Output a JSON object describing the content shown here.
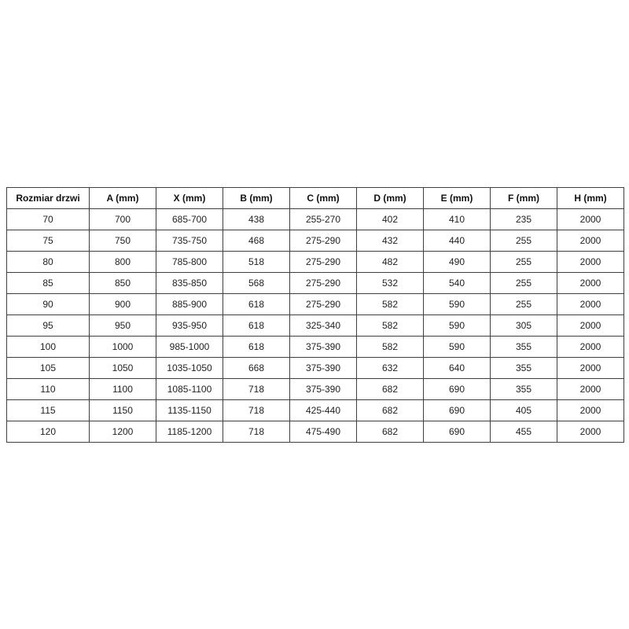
{
  "chart_data": {
    "type": "table",
    "columns": [
      "Rozmiar drzwi",
      "A (mm)",
      "X (mm)",
      "B (mm)",
      "C (mm)",
      "D (mm)",
      "E (mm)",
      "F (mm)",
      "H (mm)"
    ],
    "rows": [
      [
        "70",
        "700",
        "685-700",
        "438",
        "255-270",
        "402",
        "410",
        "235",
        "2000"
      ],
      [
        "75",
        "750",
        "735-750",
        "468",
        "275-290",
        "432",
        "440",
        "255",
        "2000"
      ],
      [
        "80",
        "800",
        "785-800",
        "518",
        "275-290",
        "482",
        "490",
        "255",
        "2000"
      ],
      [
        "85",
        "850",
        "835-850",
        "568",
        "275-290",
        "532",
        "540",
        "255",
        "2000"
      ],
      [
        "90",
        "900",
        "885-900",
        "618",
        "275-290",
        "582",
        "590",
        "255",
        "2000"
      ],
      [
        "95",
        "950",
        "935-950",
        "618",
        "325-340",
        "582",
        "590",
        "305",
        "2000"
      ],
      [
        "100",
        "1000",
        "985-1000",
        "618",
        "375-390",
        "582",
        "590",
        "355",
        "2000"
      ],
      [
        "105",
        "1050",
        "1035-1050",
        "668",
        "375-390",
        "632",
        "640",
        "355",
        "2000"
      ],
      [
        "110",
        "1100",
        "1085-1100",
        "718",
        "375-390",
        "682",
        "690",
        "355",
        "2000"
      ],
      [
        "115",
        "1150",
        "1135-1150",
        "718",
        "425-440",
        "682",
        "690",
        "405",
        "2000"
      ],
      [
        "120",
        "1200",
        "1185-1200",
        "718",
        "475-490",
        "682",
        "690",
        "455",
        "2000"
      ]
    ],
    "style": {
      "border_color": "#3f3f3f",
      "text_color": "#1f1f1f",
      "background": "#ffffff",
      "header_bold": true
    }
  }
}
